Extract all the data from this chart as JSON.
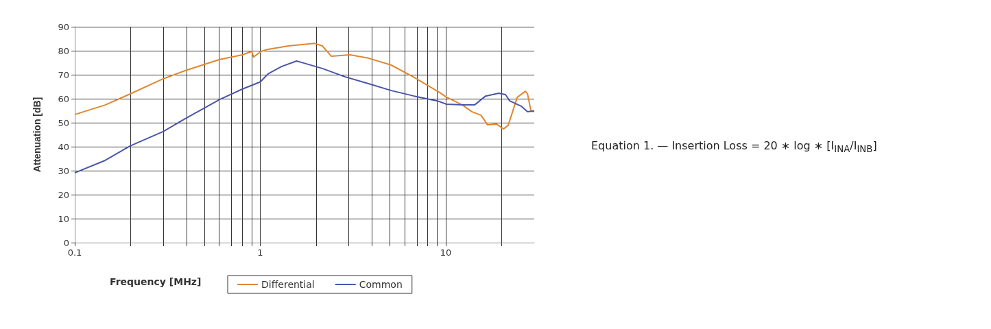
{
  "chart_data": {
    "type": "line",
    "xlabel": "Frequency [MHz]",
    "ylabel": "Attenuation [dB]",
    "annotations": [
      "Equation 1. — Insertion Loss = 20 ∗ log  ∗ [I$_{INA}$/I$_{INB}$]"
    ],
    "series": [
      {
        "name": "Differential",
        "color": "#e0872f",
        "x": [
          0.1,
          0.146,
          0.199,
          0.3,
          0.394,
          0.6,
          0.8,
          0.9,
          0.92,
          1.01,
          1.1,
          1.42,
          1.96,
          2.16,
          2.42,
          3.05,
          3.83,
          5.09,
          6.75,
          9.26,
          10.1,
          12.3,
          13.8,
          15.5,
          16.8,
          18.8,
          20.5,
          21.7,
          24.3,
          26.9,
          27.6,
          28.8,
          30
        ],
        "values": [
          53.4,
          57.4,
          62,
          68.3,
          71.7,
          76.3,
          78.3,
          79.7,
          77.4,
          79.7,
          80.6,
          82,
          83.1,
          82,
          77.7,
          78.3,
          76.9,
          74,
          68.9,
          62.6,
          60.6,
          57.4,
          54.6,
          53.1,
          49.1,
          49.4,
          47.4,
          48.9,
          60.6,
          63.1,
          62,
          54.9,
          54.6
        ]
      },
      {
        "name": "Common",
        "color": "#4a55a8",
        "x": [
          0.1,
          0.146,
          0.199,
          0.3,
          0.394,
          0.605,
          0.8,
          1.0,
          1.1,
          1.3,
          1.57,
          1.71,
          2.16,
          2.87,
          3.83,
          5.09,
          6.75,
          9.0,
          10.1,
          12.3,
          14.3,
          16.4,
          19.3,
          21.0,
          22.1,
          25.5,
          27.6,
          30
        ],
        "values": [
          29.1,
          34.3,
          40.3,
          46.3,
          51.7,
          59.7,
          64,
          67,
          70.3,
          73.4,
          75.7,
          74.9,
          72.6,
          69.1,
          66.3,
          63.4,
          61.1,
          59.1,
          57.7,
          57.4,
          57.4,
          61.1,
          62.3,
          61.7,
          59.1,
          56.9,
          54.6,
          54.9
        ]
      }
    ],
    "xlim": [
      0.1,
      30
    ],
    "ylim": [
      0,
      90
    ],
    "xticks": [
      0.1,
      {
        "value": 0.2,
        "label": null
      },
      {
        "value": 0.3,
        "label": null
      },
      {
        "value": 0.4,
        "label": null
      },
      {
        "value": 0.5,
        "label": null
      },
      {
        "value": 0.6,
        "label": null
      },
      {
        "value": 0.7,
        "label": null
      },
      {
        "value": 0.8,
        "label": null
      },
      {
        "value": 0.9,
        "label": null
      },
      1,
      {
        "value": 2,
        "label": null
      },
      {
        "value": 3,
        "label": null
      },
      {
        "value": 4,
        "label": null
      },
      {
        "value": 5,
        "label": null
      },
      {
        "value": 6,
        "label": null
      },
      {
        "value": 7,
        "label": null
      },
      {
        "value": 8,
        "label": null
      },
      {
        "value": 9,
        "label": null
      },
      10,
      {
        "value": 20,
        "label": null
      }
    ],
    "yticks": [
      0,
      10,
      20,
      30,
      40,
      50,
      60,
      70,
      80,
      90
    ],
    "log": "x",
    "grid": true,
    "legend": "bottom",
    "marker": "none",
    "line_style": "solid"
  }
}
